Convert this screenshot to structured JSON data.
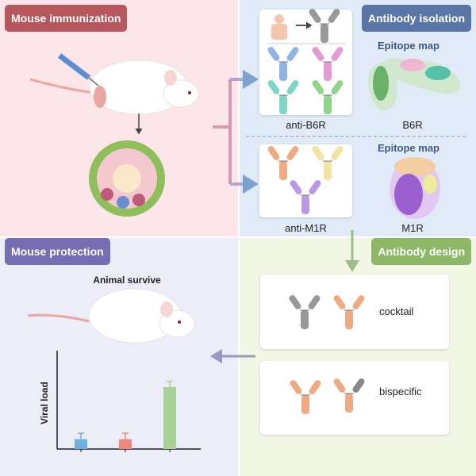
{
  "panels": {
    "immunization": {
      "title": "Mouse immunization",
      "color": "#b5575c"
    },
    "isolation": {
      "title": "Antibody isolation",
      "color": "#5a76a7"
    },
    "protection": {
      "title": "Mouse protection",
      "color": "#776db2",
      "subtitle": "Animal survive"
    },
    "design": {
      "title": "Antibody design",
      "color": "#8db867"
    }
  },
  "isolation": {
    "groups": [
      {
        "label": "anti-B6R",
        "antigen": "B6R",
        "epitope_title": "Epitope map",
        "antibody_colors": [
          "#8fb3e3",
          "#e59ad6",
          "#7fd6c6",
          "#8fd68a"
        ]
      },
      {
        "label": "anti-M1R",
        "antigen": "M1R",
        "epitope_title": "Epitope map",
        "antibody_colors": [
          "#eeaa82",
          "#f3e3a0",
          "#b99ae0"
        ]
      }
    ]
  },
  "design": {
    "formats": [
      {
        "label": "cocktail"
      },
      {
        "label": "bispecific"
      }
    ]
  },
  "chart_data": {
    "type": "bar",
    "ylabel": "Viral load",
    "categories": [
      "",
      "",
      ""
    ],
    "values": [
      1,
      1,
      6.3
    ],
    "errors": [
      0.6,
      0.6,
      0.6
    ],
    "colors": [
      "#6cb2dc",
      "#ec8a7e",
      "#a8cf94"
    ],
    "ylim": [
      0,
      10
    ]
  }
}
